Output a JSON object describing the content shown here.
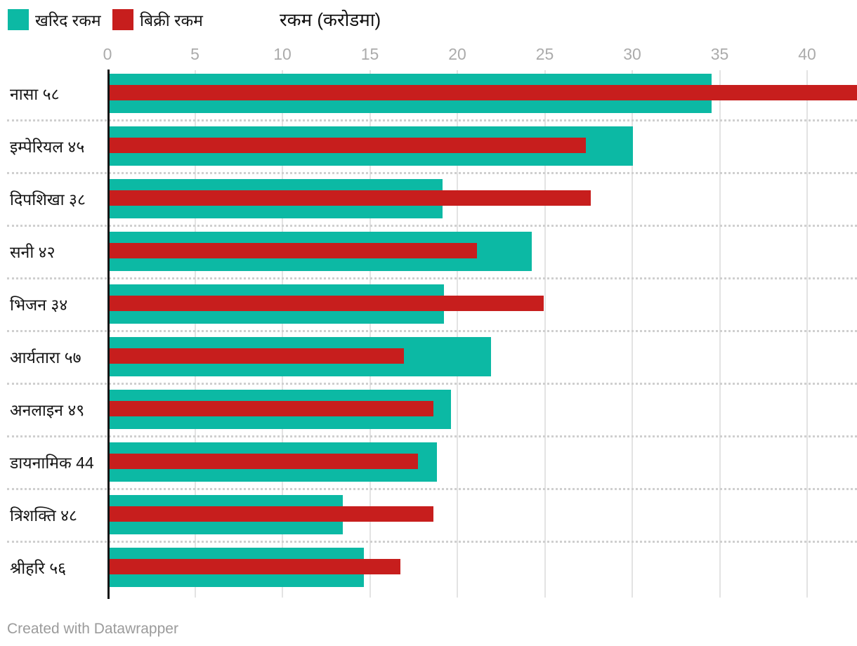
{
  "legend": {
    "items": [
      {
        "label": "खरिद रकम",
        "color": "#0CB9A4"
      },
      {
        "label": "बिक्री रकम",
        "color": "#C71E1D"
      }
    ]
  },
  "axis_title": "रकम (करोडमा)",
  "footer": "Created with Datawrapper",
  "chart_data": {
    "type": "bar",
    "orientation": "horizontal",
    "title": "रकम (करोडमा)",
    "categories": [
      "नासा ५८",
      "इम्पेरियल ४५",
      "दिपशिखा ३८",
      "सनी ४२",
      "भिजन ३४",
      "आर्यतारा ५७",
      "अनलाइन ४९",
      "डायनामिक 44",
      "त्रिशक्ति ४८",
      "श्रीहरि ५६"
    ],
    "series": [
      {
        "name": "खरिद रकम",
        "color": "#0CB9A4",
        "values": [
          34.5,
          30.0,
          19.1,
          24.2,
          19.2,
          21.9,
          19.6,
          18.8,
          13.4,
          14.6
        ]
      },
      {
        "name": "बिक्री रकम",
        "color": "#C71E1D",
        "values": [
          42.9,
          27.3,
          27.6,
          21.1,
          24.9,
          16.9,
          18.6,
          17.7,
          18.6,
          16.7
        ]
      }
    ],
    "x_ticks": [
      0,
      5,
      10,
      15,
      20,
      25,
      30,
      35,
      40
    ],
    "xlim": [
      0,
      42.85
    ],
    "grid": true,
    "legend_position": "top-left",
    "colors": {
      "gridline": "#e3e3e3",
      "zero_line": "#141414",
      "tick_label": "#ababab",
      "separator": "#cfcfcf"
    }
  }
}
